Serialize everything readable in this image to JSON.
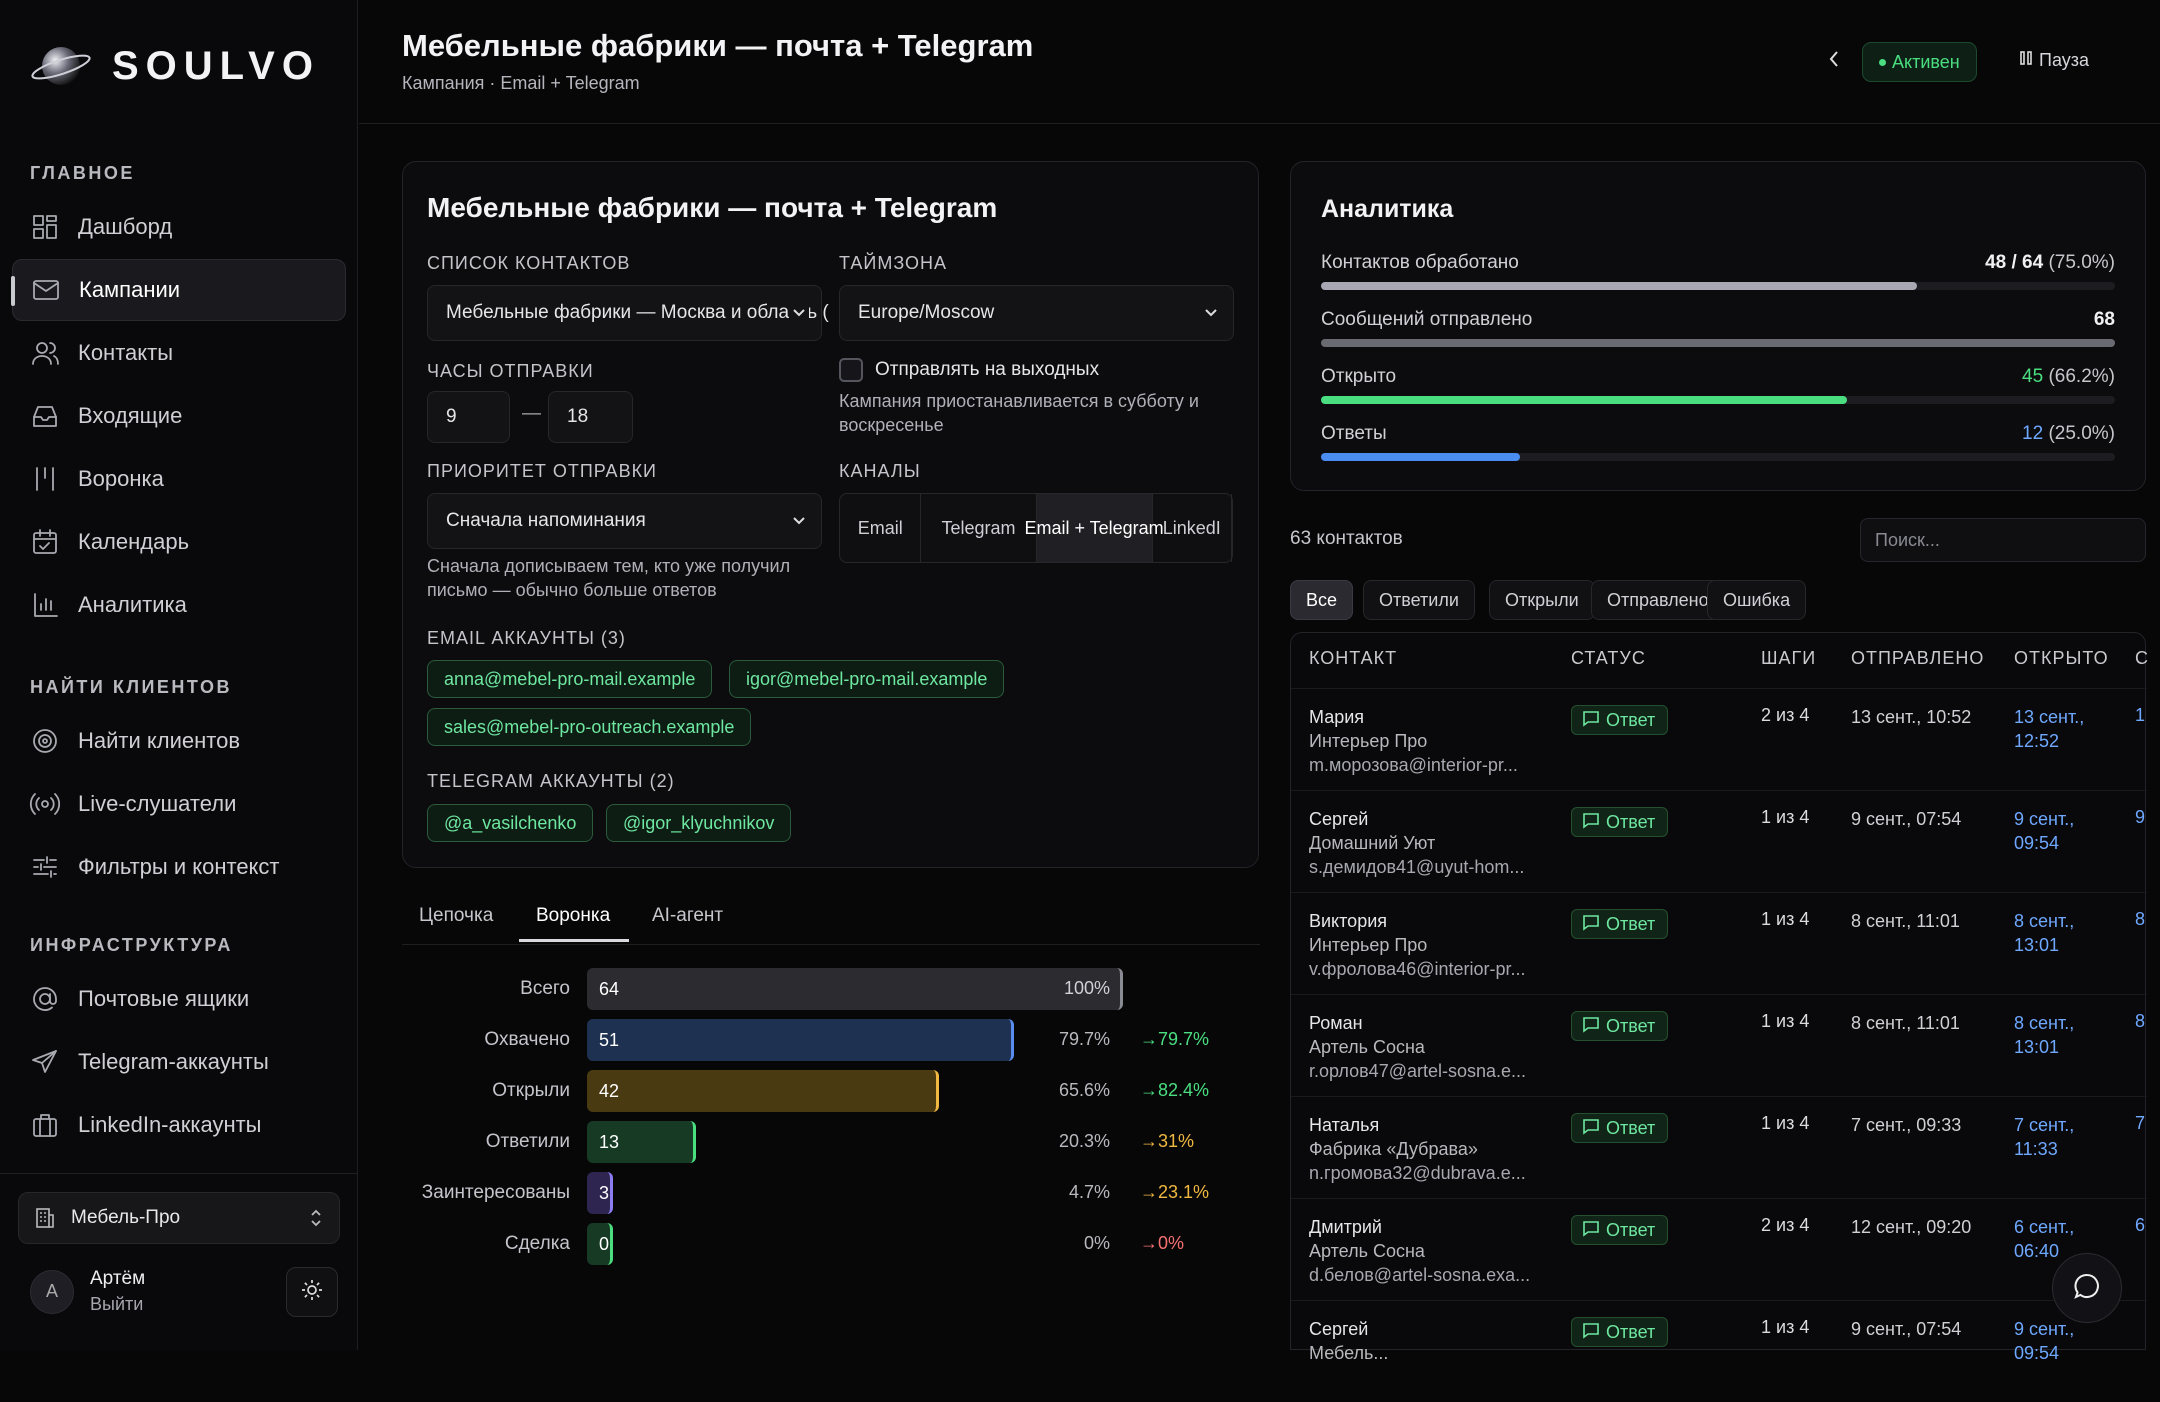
{
  "app": {
    "brand": "SOULVO"
  },
  "sidebar": {
    "sections": {
      "main": "ГЛАВНОЕ",
      "find": "НАЙТИ КЛИЕНТОВ",
      "infra": "ИНФРАСТРУКТУРА"
    },
    "main_items": [
      {
        "label": "Дашборд",
        "icon": "dashboard-icon"
      },
      {
        "label": "Кампании",
        "icon": "mail-icon"
      },
      {
        "label": "Контакты",
        "icon": "users-icon"
      },
      {
        "label": "Входящие",
        "icon": "inbox-icon"
      },
      {
        "label": "Воронка",
        "icon": "funnel-icon"
      },
      {
        "label": "Календарь",
        "icon": "calendar-icon"
      },
      {
        "label": "Аналитика",
        "icon": "bar-chart-icon"
      }
    ],
    "find_items": [
      {
        "label": "Найти клиентов",
        "icon": "target-icon"
      },
      {
        "label": "Live-слушатели",
        "icon": "broadcast-icon"
      },
      {
        "label": "Фильтры и контекст",
        "icon": "sliders-icon"
      }
    ],
    "infra_items": [
      {
        "label": "Почтовые ящики",
        "icon": "at-sign-icon"
      },
      {
        "label": "Telegram-аккаунты",
        "icon": "send-icon"
      },
      {
        "label": "LinkedIn-аккаунты",
        "icon": "briefcase-icon"
      }
    ],
    "workspace": "Мебель-Про",
    "user": {
      "initial": "А",
      "name": "Артём",
      "action": "Выйти"
    }
  },
  "header": {
    "title": "Мебельные фабрики — почта + Telegram",
    "subtitle": "Кампания · Email + Telegram",
    "status": "Активен",
    "pause": "Пауза"
  },
  "settings": {
    "title": "Мебельные фабрики — почта + Telegram",
    "contact_list_label": "СПИСОК КОНТАКТОВ",
    "contact_list_value": "Мебельные фабрики — Москва и область (",
    "timezone_label": "ТАЙМЗОНА",
    "timezone_value": "Europe/Moscow",
    "hours_label": "ЧАСЫ ОТПРАВКИ",
    "hours_from": "9",
    "hours_dash": "—",
    "hours_to": "18",
    "weekends_label": "Отправлять на выходных",
    "weekends_checked": false,
    "weekends_help": "Кампания приостанавливается в субботу и воскресенье",
    "priority_label": "ПРИОРИТЕТ ОТПРАВКИ",
    "priority_value": "Сначала напоминания",
    "priority_help": "Сначала дописываем тем, кто уже получил письмо — обычно больше ответов",
    "channels_label": "КАНАЛЫ",
    "channels": [
      "Email",
      "Telegram",
      "Email + Telegram",
      "LinkedI"
    ],
    "channels_selected": "Email + Telegram",
    "email_label": "EMAIL АККАУНТЫ",
    "email_count": "(3)",
    "emails": [
      "anna@mebel-pro-mail.example",
      "igor@mebel-pro-mail.example",
      "sales@mebel-pro-outreach.example"
    ],
    "tg_label": "TELEGRAM АККАУНТЫ",
    "tg_count": "(2)",
    "tg_accounts": [
      "@a_vasilchenko",
      "@igor_klyuchnikov"
    ]
  },
  "tabs": [
    "Цепочка",
    "Воронка",
    "AI-агент"
  ],
  "active_tab": "Воронка",
  "funnel": [
    {
      "name": "Всего",
      "value": 64,
      "pct": "100%",
      "conv": "",
      "color": "#2b2b30",
      "edge": "#8a8a92",
      "conv_color": ""
    },
    {
      "name": "Охвачено",
      "value": 51,
      "pct": "79.7%",
      "conv": "→79.7%",
      "color": "#1f3150",
      "edge": "#5b8def",
      "conv_color": "#4ade80"
    },
    {
      "name": "Открыли",
      "value": 42,
      "pct": "65.6%",
      "conv": "→82.4%",
      "color": "#4a3a12",
      "edge": "#f0b840",
      "conv_color": "#4ade80"
    },
    {
      "name": "Ответили",
      "value": 13,
      "pct": "20.3%",
      "conv": "→31%",
      "color": "#173a24",
      "edge": "#4ade80",
      "conv_color": "#f0b840"
    },
    {
      "name": "Заинтересованы",
      "value": 3,
      "pct": "4.7%",
      "conv": "→23.1%",
      "color": "#2e2650",
      "edge": "#8b7cf0",
      "conv_color": "#f0b840"
    },
    {
      "name": "Сделка",
      "value": 0,
      "pct": "0%",
      "conv": "→0%",
      "color": "#173a24",
      "edge": "#4ade80",
      "conv_color": "#f87171"
    }
  ],
  "analytics": {
    "title": "Аналитика",
    "rows": [
      {
        "name": "Контактов обработано",
        "main": "48 / 64",
        "extra": "(75.0%)",
        "fraction": 0.75,
        "color": "#a8a8b2",
        "main_color": "#f0f0f2"
      },
      {
        "name": "Сообщений отправлено",
        "main": "68",
        "extra": "",
        "fraction": 1.0,
        "color": "#6a6a72",
        "main_color": "#f0f0f2"
      },
      {
        "name": "Открыто",
        "main": "45",
        "extra": "(66.2%)",
        "fraction": 0.662,
        "color": "#4ade80",
        "main_color": "#4ade80"
      },
      {
        "name": "Ответы",
        "main": "12",
        "extra": "(25.0%)",
        "fraction": 0.25,
        "color": "#4a8cf0",
        "main_color": "#6ea8ff"
      }
    ]
  },
  "contacts": {
    "count_label": "63 контактов",
    "search_placeholder": "Поиск...",
    "filters": [
      "Все",
      "Ответили",
      "Открыли",
      "Отправлено",
      "Ошибка"
    ],
    "active_filter": "Все",
    "columns": [
      "КОНТАКТ",
      "СТАТУС",
      "ШАГИ",
      "ОТПРАВЛЕНО",
      "ОТКРЫТО",
      "С"
    ],
    "rows": [
      {
        "name": "Мария",
        "company": "Интерьер Про",
        "email": "m.морозова@interior-pr...",
        "status": "Ответ",
        "steps": "2 из 4",
        "sent": "13 сент., 10:52",
        "opened": "13 сент., 12:52",
        "more": "1"
      },
      {
        "name": "Сергей",
        "company": "Домашний Уют",
        "email": "s.демидов41@uyut-hom...",
        "status": "Ответ",
        "steps": "1 из 4",
        "sent": "9 сент., 07:54",
        "opened": "9 сент., 09:54",
        "more": "9"
      },
      {
        "name": "Виктория",
        "company": "Интерьер Про",
        "email": "v.фролова46@interior-pr...",
        "status": "Ответ",
        "steps": "1 из 4",
        "sent": "8 сент., 11:01",
        "opened": "8 сент., 13:01",
        "more": "8"
      },
      {
        "name": "Роман",
        "company": "Артель Сосна",
        "email": "r.орлов47@artel-sosna.e...",
        "status": "Ответ",
        "steps": "1 из 4",
        "sent": "8 сент., 11:01",
        "opened": "8 сент., 13:01",
        "more": "8"
      },
      {
        "name": "Наталья",
        "company": "Фабрика «Дубрава»",
        "email": "n.громова32@dubrava.e...",
        "status": "Ответ",
        "steps": "1 из 4",
        "sent": "7 сент., 09:33",
        "opened": "7 сент., 11:33",
        "more": "7"
      },
      {
        "name": "Дмитрий",
        "company": "Артель Сосна",
        "email": "d.белов@artel-sosna.exa...",
        "status": "Ответ",
        "steps": "2 из 4",
        "sent": "12 сент., 09:20",
        "opened": "6 сент., 06:40",
        "more": "6"
      },
      {
        "name": "Сергей",
        "company": "Мебель...",
        "email": "",
        "status": "Ответ",
        "steps": "1 из 4",
        "sent": "9 сент., 07:54",
        "opened": "9 сент., 09:54",
        "more": ""
      }
    ]
  }
}
